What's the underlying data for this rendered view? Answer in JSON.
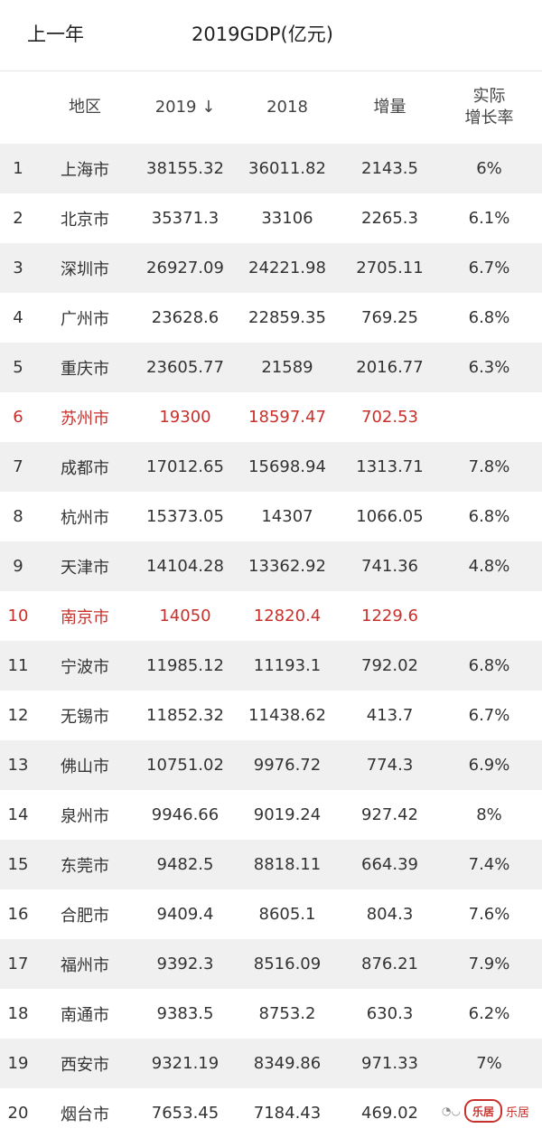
{
  "topbar": {
    "back_label": "上一年",
    "title": "2019GDP(亿元)"
  },
  "table": {
    "headers": {
      "region": "地区",
      "y2019": "2019 ↓",
      "y2018": "2018",
      "increase": "增量",
      "growth_line1": "实际",
      "growth_line2": "增长率"
    },
    "rows": [
      {
        "rank": "1",
        "city": "上海市",
        "y2019": "38155.32",
        "y2018": "36011.82",
        "increase": "2143.5",
        "growth": "6%",
        "highlight": false
      },
      {
        "rank": "2",
        "city": "北京市",
        "y2019": "35371.3",
        "y2018": "33106",
        "increase": "2265.3",
        "growth": "6.1%",
        "highlight": false
      },
      {
        "rank": "3",
        "city": "深圳市",
        "y2019": "26927.09",
        "y2018": "24221.98",
        "increase": "2705.11",
        "growth": "6.7%",
        "highlight": false
      },
      {
        "rank": "4",
        "city": "广州市",
        "y2019": "23628.6",
        "y2018": "22859.35",
        "increase": "769.25",
        "growth": "6.8%",
        "highlight": false
      },
      {
        "rank": "5",
        "city": "重庆市",
        "y2019": "23605.77",
        "y2018": "21589",
        "increase": "2016.77",
        "growth": "6.3%",
        "highlight": false
      },
      {
        "rank": "6",
        "city": "苏州市",
        "y2019": "19300",
        "y2018": "18597.47",
        "increase": "702.53",
        "growth": "",
        "highlight": true
      },
      {
        "rank": "7",
        "city": "成都市",
        "y2019": "17012.65",
        "y2018": "15698.94",
        "increase": "1313.71",
        "growth": "7.8%",
        "highlight": false
      },
      {
        "rank": "8",
        "city": "杭州市",
        "y2019": "15373.05",
        "y2018": "14307",
        "increase": "1066.05",
        "growth": "6.8%",
        "highlight": false
      },
      {
        "rank": "9",
        "city": "天津市",
        "y2019": "14104.28",
        "y2018": "13362.92",
        "increase": "741.36",
        "growth": "4.8%",
        "highlight": false
      },
      {
        "rank": "10",
        "city": "南京市",
        "y2019": "14050",
        "y2018": "12820.4",
        "increase": "1229.6",
        "growth": "",
        "highlight": true
      },
      {
        "rank": "11",
        "city": "宁波市",
        "y2019": "11985.12",
        "y2018": "11193.1",
        "increase": "792.02",
        "growth": "6.8%",
        "highlight": false
      },
      {
        "rank": "12",
        "city": "无锡市",
        "y2019": "11852.32",
        "y2018": "11438.62",
        "increase": "413.7",
        "growth": "6.7%",
        "highlight": false
      },
      {
        "rank": "13",
        "city": "佛山市",
        "y2019": "10751.02",
        "y2018": "9976.72",
        "increase": "774.3",
        "growth": "6.9%",
        "highlight": false
      },
      {
        "rank": "14",
        "city": "泉州市",
        "y2019": "9946.66",
        "y2018": "9019.24",
        "increase": "927.42",
        "growth": "8%",
        "highlight": false
      },
      {
        "rank": "15",
        "city": "东莞市",
        "y2019": "9482.5",
        "y2018": "8818.11",
        "increase": "664.39",
        "growth": "7.4%",
        "highlight": false
      },
      {
        "rank": "16",
        "city": "合肥市",
        "y2019": "9409.4",
        "y2018": "8605.1",
        "increase": "804.3",
        "growth": "7.6%",
        "highlight": false
      },
      {
        "rank": "17",
        "city": "福州市",
        "y2019": "9392.3",
        "y2018": "8516.09",
        "increase": "876.21",
        "growth": "7.9%",
        "highlight": false
      },
      {
        "rank": "18",
        "city": "南通市",
        "y2019": "9383.5",
        "y2018": "8753.2",
        "increase": "630.3",
        "growth": "6.2%",
        "highlight": false
      },
      {
        "rank": "19",
        "city": "西安市",
        "y2019": "9321.19",
        "y2018": "8349.86",
        "increase": "971.33",
        "growth": "7%",
        "highlight": false
      },
      {
        "rank": "20",
        "city": "烟台市",
        "y2019": "7653.45",
        "y2018": "7184.43",
        "increase": "469.02",
        "growth": "",
        "highlight": false
      }
    ]
  },
  "watermark": {
    "logo": "乐居",
    "wechat_icon": "wechat-icon",
    "text": "乐居"
  },
  "colors": {
    "highlight": "#c9302c",
    "row_stripe": "#f0f0f0"
  }
}
